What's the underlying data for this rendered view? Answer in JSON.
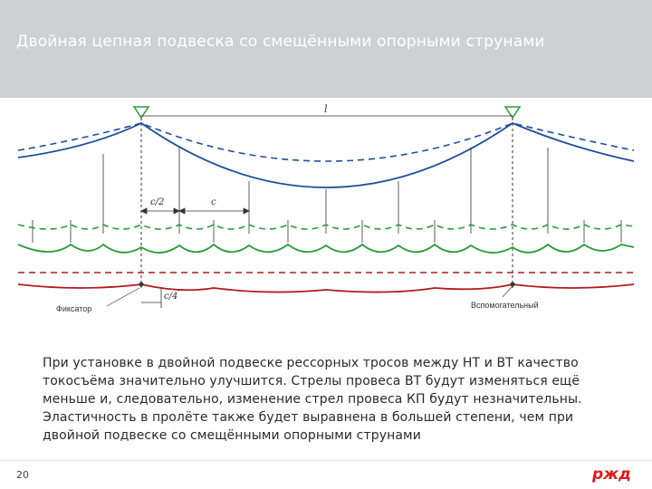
{
  "slide": {
    "title": "Двойная цепная подвеска со смещёнными опорными струнами",
    "body": "При установке в двойной подвеске рессорных тросов между НТ и ВТ качество токосъёма значительно улучшится. Стрелы провеса ВТ будут изменяться ещё меньше и, следовательно, изменение стрел провеса КП будут незначительны. Эластичность в пролёте также будет выравнена в большей степени, чем при двойной подвеске со смещёнными опорными струнами",
    "page_number": "20",
    "logo_text": "ржд"
  },
  "diagram": {
    "labels": {
      "span": "l",
      "half_c": "c/2",
      "c": "c",
      "quarter_c": "c/4",
      "fixator": "Фиксатор",
      "auxiliary": "Вспомогательный"
    },
    "colors": {
      "carrier": "#1f4e9c",
      "aux": "#2e9a3d",
      "contact": "#b01c1c",
      "dim": "#333333"
    }
  }
}
